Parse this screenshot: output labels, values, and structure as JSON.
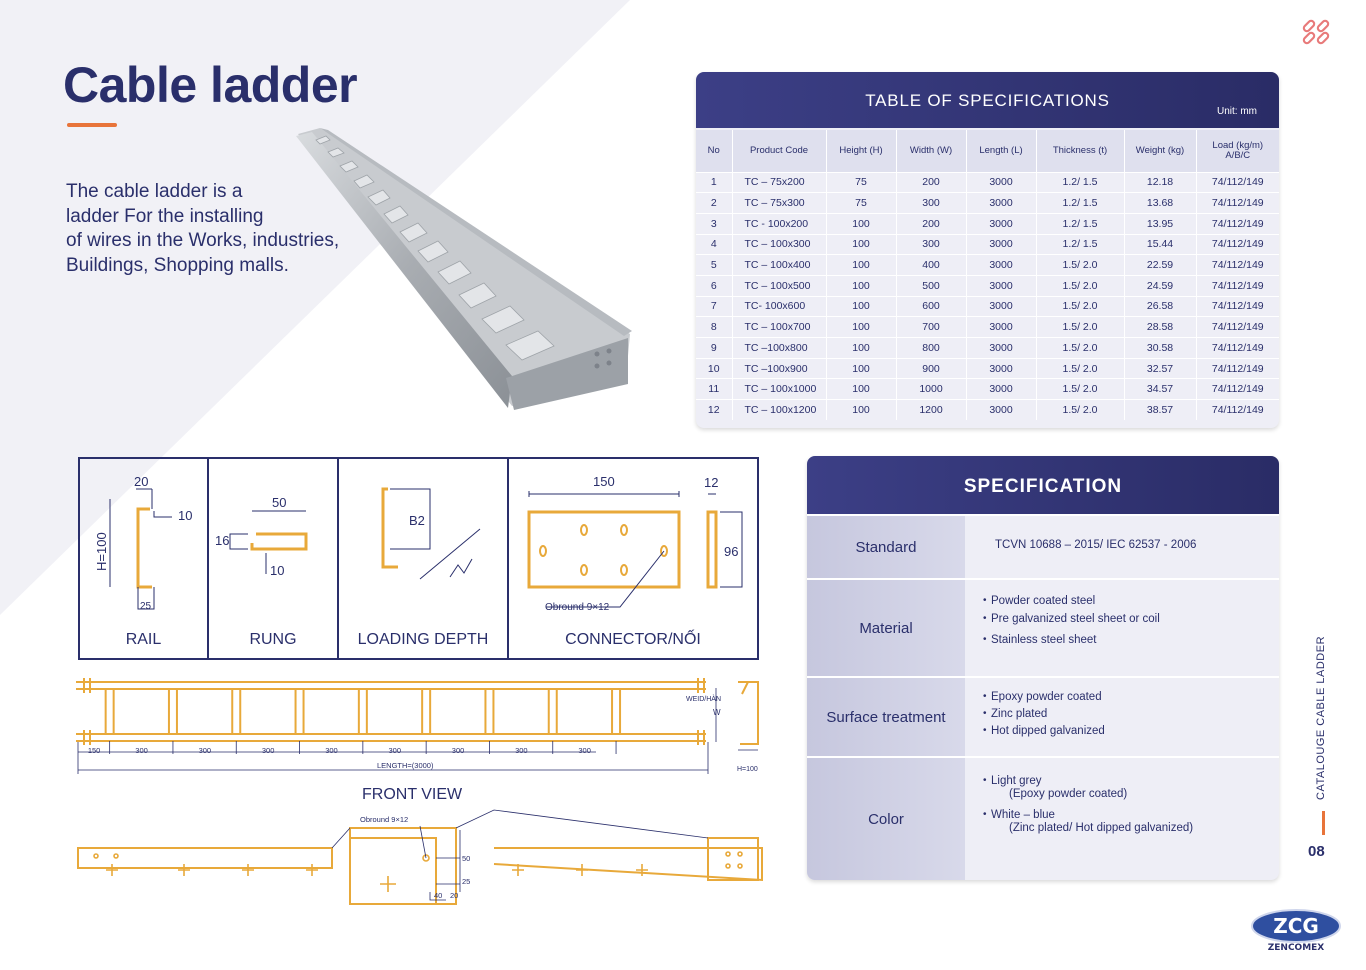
{
  "title": "Cable ladder",
  "intro_lines": [
    "The cable ladder is a",
    "ladder For the installing",
    "of wires in the Works, industries,",
    "Buildings, Shopping malls."
  ],
  "spec_table": {
    "title": "TABLE OF SPECIFICATIONS",
    "unit": "Unit: mm",
    "headers": [
      "No",
      "Product Code",
      "Height (H)",
      "Width (W)",
      "Length (L)",
      "Thickness (t)",
      "Weight (kg)",
      "Load (kg/m)",
      "A/B/C"
    ],
    "rows": [
      [
        "1",
        "TC – 75x200",
        "75",
        "200",
        "3000",
        "1.2/ 1.5",
        "12.18",
        "74/112/149"
      ],
      [
        "2",
        "TC – 75x300",
        "75",
        "300",
        "3000",
        "1.2/ 1.5",
        "13.68",
        "74/112/149"
      ],
      [
        "3",
        "TC - 100x200",
        "100",
        "200",
        "3000",
        "1.2/ 1.5",
        "13.95",
        "74/112/149"
      ],
      [
        "4",
        "TC – 100x300",
        "100",
        "300",
        "3000",
        "1.2/ 1.5",
        "15.44",
        "74/112/149"
      ],
      [
        "5",
        "TC – 100x400",
        "100",
        "400",
        "3000",
        "1.5/ 2.0",
        "22.59",
        "74/112/149"
      ],
      [
        "6",
        "TC – 100x500",
        "100",
        "500",
        "3000",
        "1.5/ 2.0",
        "24.59",
        "74/112/149"
      ],
      [
        "7",
        "TC- 100x600",
        "100",
        "600",
        "3000",
        "1.5/ 2.0",
        "26.58",
        "74/112/149"
      ],
      [
        "8",
        "TC – 100x700",
        "100",
        "700",
        "3000",
        "1.5/ 2.0",
        "28.58",
        "74/112/149"
      ],
      [
        "9",
        "TC –100x800",
        "100",
        "800",
        "3000",
        "1.5/ 2.0",
        "30.58",
        "74/112/149"
      ],
      [
        "10",
        "TC –100x900",
        "100",
        "900",
        "3000",
        "1.5/ 2.0",
        "32.57",
        "74/112/149"
      ],
      [
        "11",
        "TC – 100x1000",
        "100",
        "1000",
        "3000",
        "1.5/ 2.0",
        "34.57",
        "74/112/149"
      ],
      [
        "12",
        "TC – 100x1200",
        "100",
        "1200",
        "3000",
        "1.5/ 2.0",
        "38.57",
        "74/112/149"
      ]
    ]
  },
  "drawings": {
    "labels": [
      "RAIL",
      "RUNG",
      "LOADING DEPTH",
      "CONNECTOR/NỐI"
    ],
    "rail": {
      "top": "20",
      "side": "10",
      "height": "H=100",
      "bottom": "25"
    },
    "rung": {
      "top": "50",
      "left": "16",
      "bottom": "10"
    },
    "loading": {
      "label": "B2"
    },
    "connector": {
      "width": "150",
      "thick": "12",
      "height": "96",
      "hole": "Obround 9×12"
    },
    "plan": {
      "spacings": [
        "150",
        "300",
        "300",
        "300",
        "300",
        "300",
        "300",
        "300",
        "300"
      ],
      "length": "LENGTH=(3000)",
      "weld": "WEID/HÀN",
      "w": "W",
      "h": "H=100"
    },
    "front_view": "FRONT VIEW",
    "front": {
      "hole": "Obround 9×12",
      "d50": "50",
      "d25": "25",
      "d40": "40",
      "d20": "20"
    }
  },
  "specification": {
    "title": "SPECIFICATION",
    "standard": {
      "label": "Standard",
      "value": "TCVN 10688 – 2015/ IEC 62537 - 2006"
    },
    "material": {
      "label": "Material",
      "items": [
        "Powder coated steel",
        "Pre galvanized steel sheet or coil",
        "Stainless steel sheet"
      ]
    },
    "surface": {
      "label": "Surface treatment",
      "items": [
        "Epoxy powder coated",
        "Zinc plated",
        "Hot dipped galvanized"
      ]
    },
    "color": {
      "label": "Color",
      "items": [
        "Light grey",
        "(Epoxy powder coated)",
        "White – blue",
        "(Zinc plated/ Hot dipped galvanized)"
      ]
    }
  },
  "side_label": "CATALOUGE CABLE LADDER",
  "page_number": "08",
  "logo": {
    "mark": "ZCG",
    "name": "ZENCOMEX"
  },
  "colors": {
    "navy": "#2a2f6b",
    "orange": "#e8743a",
    "drawing": "#e8a93a",
    "panel": "#eeeef6"
  }
}
